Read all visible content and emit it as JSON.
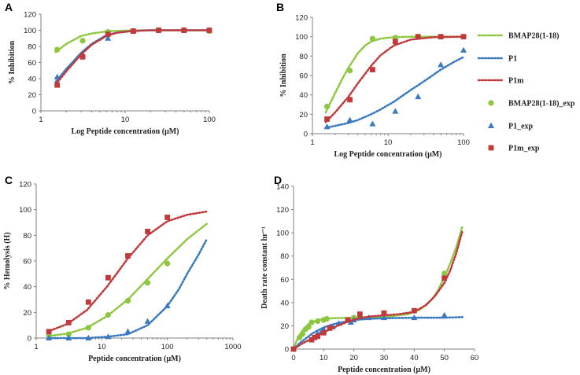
{
  "colors": {
    "bmap": "#8DC63F",
    "p1": "#3A78C0",
    "p1m": "#C0393B",
    "axis": "#808080"
  },
  "legend": [
    {
      "label": "BMAP28(1-18)",
      "kind": "line",
      "series": "bmap"
    },
    {
      "label": "P1",
      "kind": "line",
      "series": "p1"
    },
    {
      "label": "P1m",
      "kind": "line",
      "series": "p1m"
    },
    {
      "label": "BMAP28(1-18)_exp",
      "kind": "circle",
      "series": "bmap"
    },
    {
      "label": "P1_exp",
      "kind": "triangle",
      "series": "p1"
    },
    {
      "label": "P1m_exp",
      "kind": "square",
      "series": "p1m"
    }
  ],
  "chart_data": [
    {
      "panel": "A",
      "type": "scatter",
      "xscale": "log",
      "xlim": [
        1,
        100
      ],
      "ylim": [
        0,
        120
      ],
      "xticks": [
        1,
        10,
        100
      ],
      "yticks": [
        0,
        20,
        40,
        60,
        80,
        100,
        120
      ],
      "xlabel": "Log Peptide concentration (μM)",
      "ylabel": "% Inhibition",
      "series": [
        {
          "name": "BMAP28(1-18)",
          "key": "bmap",
          "marker": "circle",
          "x": [
            1.56,
            3.13,
            6.25,
            12.5,
            25,
            50,
            100
          ],
          "y": [
            76,
            87,
            98,
            99,
            100,
            100,
            99
          ],
          "fit_x": [
            1.5,
            2,
            3,
            4,
            6,
            8,
            12,
            20,
            40,
            100
          ],
          "fit_y": [
            73,
            83,
            93,
            96,
            98.5,
            99.3,
            99.8,
            100,
            100,
            100
          ]
        },
        {
          "name": "P1",
          "key": "p1",
          "marker": "triangle",
          "x": [
            1.56,
            3.13,
            6.25,
            12.5,
            25,
            50,
            100
          ],
          "y": [
            42,
            70,
            90,
            99,
            100,
            100,
            100
          ],
          "fit_x": [
            1.5,
            2,
            3,
            4,
            6,
            8,
            12,
            20,
            40,
            100
          ],
          "fit_y": [
            36,
            52,
            72,
            83,
            94,
            97,
            99,
            100,
            100,
            100
          ]
        },
        {
          "name": "P1m",
          "key": "p1m",
          "marker": "square",
          "x": [
            1.56,
            3.13,
            6.25,
            12.5,
            25,
            50,
            100
          ],
          "y": [
            32,
            67,
            95,
            99,
            100,
            100,
            100
          ],
          "fit_x": [
            1.5,
            2,
            3,
            4,
            6,
            8,
            12,
            20,
            40,
            100
          ],
          "fit_y": [
            33,
            49,
            70,
            82,
            93,
            97,
            99,
            100,
            100,
            100
          ]
        }
      ]
    },
    {
      "panel": "B",
      "type": "scatter",
      "xscale": "log",
      "xlim": [
        1,
        100
      ],
      "ylim": [
        0,
        120
      ],
      "xticks": [
        1,
        10,
        100
      ],
      "yticks": [
        0,
        20,
        40,
        60,
        80,
        100,
        120
      ],
      "xlabel": "Log Peptide concentration (μM)",
      "ylabel": "% Inhibition",
      "series": [
        {
          "name": "BMAP28(1-18)",
          "key": "bmap",
          "marker": "circle",
          "x": [
            1.56,
            3.13,
            6.25,
            12.5,
            25,
            50,
            100
          ],
          "y": [
            28,
            65,
            98,
            99,
            100,
            100,
            100
          ],
          "fit_x": [
            1.5,
            2,
            2.5,
            3,
            4,
            5,
            6,
            8,
            12,
            20,
            40,
            100
          ],
          "fit_y": [
            22,
            42,
            57,
            68,
            83,
            91,
            95,
            98,
            99.5,
            100,
            100,
            100
          ]
        },
        {
          "name": "P1",
          "key": "p1",
          "marker": "triangle",
          "x": [
            1.56,
            3.13,
            6.25,
            12.5,
            25,
            50,
            100
          ],
          "y": [
            7,
            14,
            10,
            23,
            38,
            71,
            86
          ],
          "fit_x": [
            1.5,
            2,
            3,
            4,
            6,
            8,
            12,
            20,
            30,
            50,
            75,
            100
          ],
          "fit_y": [
            6,
            8,
            11,
            14,
            20,
            25,
            33,
            45,
            54,
            66,
            74,
            79
          ]
        },
        {
          "name": "P1m",
          "key": "p1m",
          "marker": "square",
          "x": [
            1.56,
            3.13,
            6.25,
            12.5,
            25,
            50,
            100
          ],
          "y": [
            15,
            35,
            66,
            95,
            100,
            100,
            100
          ],
          "fit_x": [
            1.5,
            2,
            3,
            4,
            6,
            8,
            12,
            20,
            40,
            100
          ],
          "fit_y": [
            12,
            22,
            38,
            52,
            70,
            81,
            91,
            97,
            99.5,
            100
          ]
        }
      ]
    },
    {
      "panel": "C",
      "type": "scatter",
      "xscale": "log",
      "xlim": [
        1,
        1000
      ],
      "ylim": [
        0,
        120
      ],
      "xticks": [
        1,
        10,
        100,
        1000
      ],
      "yticks": [
        0,
        20,
        40,
        60,
        80,
        100,
        120
      ],
      "xlabel": "Peptide concentration (μM)",
      "ylabel": "% Hemolysis (H)",
      "series": [
        {
          "name": "BMAP28(1-18)",
          "key": "bmap",
          "marker": "circle",
          "x": [
            1.56,
            3.13,
            6.25,
            12.5,
            25,
            50,
            100
          ],
          "y": [
            2,
            3,
            8,
            18,
            29,
            43,
            58
          ],
          "fit_x": [
            1.5,
            3,
            6,
            12,
            25,
            50,
            100,
            200,
            400
          ],
          "fit_y": [
            1.5,
            3.5,
            8,
            17,
            30,
            46,
            62,
            77,
            89
          ]
        },
        {
          "name": "P1",
          "key": "p1",
          "marker": "triangle",
          "x": [
            1.56,
            3.13,
            6.25,
            12.5,
            25,
            50,
            100
          ],
          "y": [
            0,
            0,
            0,
            1,
            5,
            13,
            25
          ],
          "fit_x": [
            1.5,
            3,
            6,
            12,
            25,
            50,
            100,
            150,
            200,
            300,
            400
          ],
          "fit_y": [
            0,
            0,
            0,
            1,
            3,
            10,
            25,
            38,
            50,
            65,
            77
          ]
        },
        {
          "name": "P1m",
          "key": "p1m",
          "marker": "square",
          "x": [
            1.56,
            3.13,
            6.25,
            12.5,
            25,
            50,
            100
          ],
          "y": [
            5,
            12,
            28,
            47,
            64,
            83,
            94
          ],
          "fit_x": [
            1.5,
            3,
            6,
            12,
            25,
            50,
            100,
            200,
            400
          ],
          "fit_y": [
            5,
            11,
            22,
            40,
            62,
            80,
            91,
            96,
            98.5
          ]
        }
      ]
    },
    {
      "panel": "D",
      "type": "scatter",
      "xscale": "linear",
      "xlim": [
        0,
        60
      ],
      "ylim": [
        0,
        140
      ],
      "xticks": [
        0,
        10,
        20,
        30,
        40,
        50,
        60
      ],
      "yticks": [
        0,
        20,
        40,
        60,
        80,
        100,
        120,
        140
      ],
      "xlabel": "Peptide concentration (μM)",
      "ylabel": "Death rate constant hr⁻¹",
      "series": [
        {
          "name": "BMAP28(1-18)",
          "key": "bmap",
          "marker": "circle",
          "x": [
            0,
            2,
            3,
            4,
            5,
            6,
            8,
            10,
            11,
            20,
            50
          ],
          "y": [
            0,
            10,
            13,
            17,
            19,
            23,
            24,
            25,
            26,
            27,
            65
          ],
          "fit_x": [
            0,
            1,
            2,
            3,
            4,
            5,
            6,
            8,
            10,
            13,
            20,
            30,
            38,
            42,
            46,
            48,
            50,
            52,
            54,
            56
          ],
          "fit_y": [
            0,
            7,
            12,
            16,
            19,
            21.5,
            23,
            25,
            26,
            26.5,
            27,
            27.5,
            30,
            34,
            43,
            51,
            62,
            74,
            88,
            106
          ]
        },
        {
          "name": "P1",
          "key": "p1",
          "marker": "triangle",
          "x": [
            0,
            8,
            9,
            10,
            13,
            15,
            19,
            20,
            22,
            25,
            30,
            40,
            50
          ],
          "y": [
            0,
            13,
            14,
            17,
            19,
            22,
            23,
            25,
            27,
            27,
            27,
            27,
            29
          ],
          "fit_x": [
            0,
            2,
            4,
            6,
            8,
            10,
            12,
            15,
            18,
            20,
            25,
            30,
            40,
            50,
            56
          ],
          "fit_y": [
            0,
            5,
            9,
            13,
            16,
            18.5,
            20.5,
            22.5,
            24,
            25,
            26,
            26.5,
            27,
            27,
            27.5
          ]
        },
        {
          "name": "P1m",
          "key": "p1m",
          "marker": "square",
          "x": [
            0,
            6,
            7,
            8,
            10,
            12,
            18,
            22,
            30,
            40,
            50
          ],
          "y": [
            0,
            8,
            10,
            11,
            14,
            18,
            25,
            30,
            31,
            33,
            61
          ],
          "fit_x": [
            0,
            3,
            6,
            9,
            12,
            15,
            18,
            21,
            25,
            30,
            35,
            40,
            44,
            47,
            50,
            52,
            54,
            56
          ],
          "fit_y": [
            0,
            5,
            9,
            13,
            17,
            20.5,
            23.5,
            26,
            28,
            29,
            30,
            32,
            38,
            46,
            57,
            68,
            83,
            102
          ]
        }
      ]
    }
  ]
}
